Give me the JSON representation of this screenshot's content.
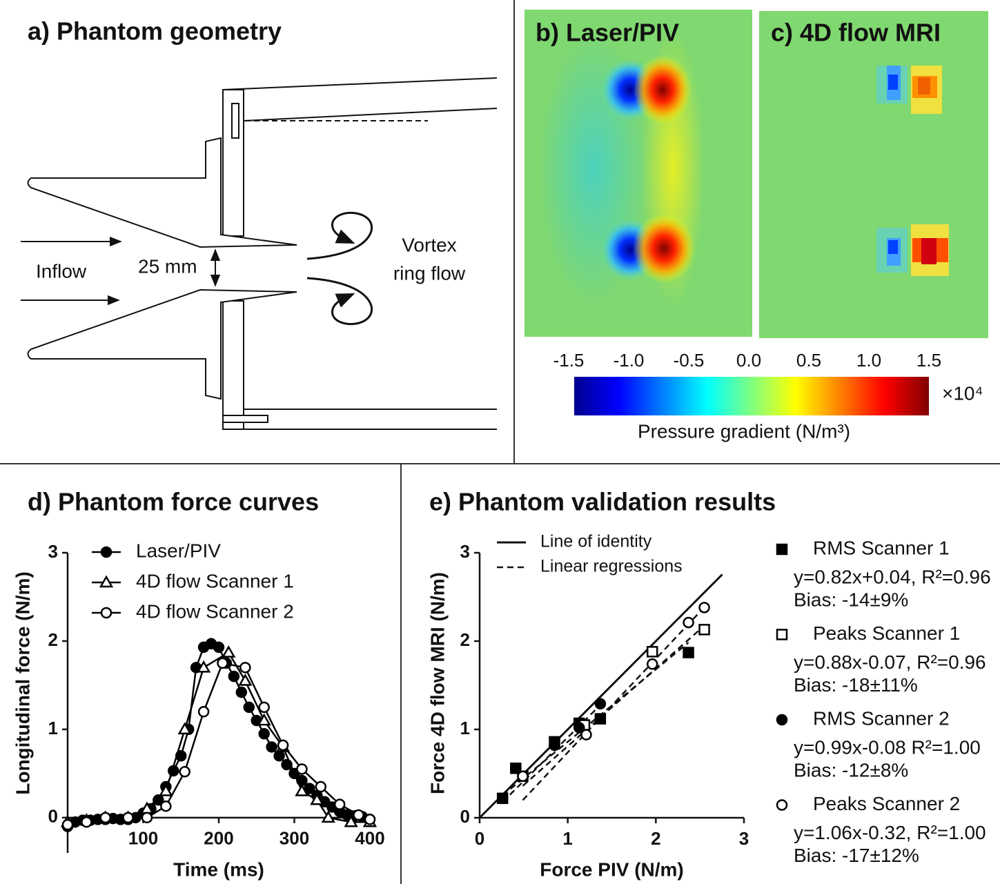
{
  "panel_a": {
    "title": "a) Phantom geometry",
    "inflow": "Inflow",
    "dimension": "25 mm",
    "vortex": [
      "Vortex",
      "ring flow"
    ]
  },
  "panel_b": {
    "title": "b) Laser/PIV"
  },
  "panel_c": {
    "title": "c) 4D flow MRI"
  },
  "colorbar": {
    "label": "Pressure gradient (N/m³)",
    "multiplier": "×10⁴",
    "clim": [
      -1.5,
      1.5
    ],
    "ticks": [
      -1.5,
      {
        "value": -1.0,
        "label": "-1.0"
      },
      -0.5,
      {
        "value": 0.0,
        "label": "0.0"
      },
      0.5,
      {
        "value": 1.0,
        "label": "1.0"
      },
      1.5
    ]
  },
  "chart_data": [
    {
      "type": "line",
      "title": "d) Phantom force curves",
      "x_label": "Time (ms)",
      "y_label": "Longitudinal force (N/m)",
      "xlim": [
        0,
        400
      ],
      "xticks": [
        100,
        200,
        300,
        400
      ],
      "ylim": [
        -0.4,
        3
      ],
      "yticks": [
        0,
        1,
        2,
        3
      ],
      "series": [
        {
          "name": "Laser/PIV",
          "marker": "filled-circle",
          "color": "#000000",
          "x": [
            0,
            10,
            20,
            30,
            40,
            50,
            60,
            70,
            80,
            90,
            100,
            110,
            120,
            130,
            140,
            150,
            160,
            170,
            180,
            190,
            200,
            210,
            220,
            230,
            240,
            250,
            260,
            270,
            280,
            290,
            300,
            310,
            320,
            330,
            340,
            350,
            360,
            370,
            380,
            390,
            400
          ],
          "values": [
            -0.1,
            -0.05,
            -0.03,
            -0.03,
            -0.02,
            -0.02,
            -0.01,
            -0.02,
            -0.02,
            0.0,
            0.05,
            0.1,
            0.2,
            0.35,
            0.53,
            0.7,
            1.0,
            1.7,
            1.93,
            1.97,
            1.93,
            1.75,
            1.6,
            1.42,
            1.25,
            1.1,
            0.95,
            0.8,
            0.7,
            0.6,
            0.5,
            0.42,
            0.33,
            0.25,
            0.18,
            0.12,
            0.07,
            0.03,
            0.02,
            0.01,
            -0.02
          ]
        },
        {
          "name": "4D flow Scanner 1",
          "marker": "open-triangle",
          "color": "#000000",
          "x": [
            0,
            25,
            50,
            80,
            105,
            130,
            155,
            180,
            213,
            235,
            260,
            285,
            310,
            330,
            345,
            375,
            400
          ],
          "values": [
            -0.05,
            -0.03,
            0.0,
            0.0,
            0.1,
            0.3,
            1.0,
            1.7,
            1.87,
            1.55,
            1.1,
            0.8,
            0.3,
            0.2,
            0.0,
            -0.05,
            -0.05
          ]
        },
        {
          "name": "4D flow Scanner 2",
          "marker": "open-circle",
          "color": "#000000",
          "x": [
            0,
            25,
            50,
            80,
            105,
            130,
            155,
            180,
            205,
            235,
            260,
            285,
            310,
            335,
            360,
            385,
            400
          ],
          "values": [
            -0.08,
            -0.05,
            0.0,
            0.0,
            0.0,
            0.13,
            0.52,
            1.2,
            1.75,
            1.7,
            1.25,
            0.82,
            0.55,
            0.35,
            0.15,
            0.03,
            -0.02
          ]
        }
      ]
    },
    {
      "type": "scatter",
      "title": "e) Phantom validation results",
      "x_label": "Force PIV (N/m)",
      "y_label": "Force 4D flow MRI (N/m)",
      "xlim": [
        0,
        3
      ],
      "xticks": [
        0,
        1,
        2,
        3
      ],
      "ylim": [
        0,
        3
      ],
      "yticks": [
        0,
        1,
        2,
        3
      ],
      "identity_label": "Line of identity",
      "regression_label": "Linear regressions",
      "series": [
        {
          "name": "RMS Scanner 1",
          "marker": "filled-square",
          "color": "#000000",
          "x": [
            0.26,
            0.41,
            0.85,
            1.13,
            1.37,
            2.37
          ],
          "values": [
            0.22,
            0.56,
            0.86,
            1.07,
            1.12,
            1.87
          ],
          "fit": {
            "slope": 0.82,
            "intercept": 0.04,
            "label": "y=0.82x+0.04, R²=0.96"
          },
          "bias": "Bias: -14±9%"
        },
        {
          "name": "Peaks Scanner 1",
          "marker": "open-square",
          "color": "#000000",
          "x": [
            0.49,
            1.19,
            1.96,
            2.55
          ],
          "values": [
            0.47,
            1.05,
            1.88,
            2.13
          ],
          "fit": {
            "slope": 0.88,
            "intercept": -0.07,
            "label": "y=0.88x-0.07, R²=0.96"
          },
          "bias": "Bias: -18±11%"
        },
        {
          "name": "RMS Scanner 2",
          "marker": "filled-circle",
          "color": "#000000",
          "x": [
            0.26,
            0.41,
            0.85,
            1.13,
            1.37
          ],
          "values": [
            0.22,
            0.56,
            0.82,
            1.02,
            1.29
          ],
          "fit": {
            "slope": 0.99,
            "intercept": -0.08,
            "label": "y=0.99x-0.08 R²=1.00"
          },
          "bias": "Bias: -12±8%"
        },
        {
          "name": "Peaks Scanner 2",
          "marker": "open-circle",
          "color": "#000000",
          "x": [
            0.49,
            1.21,
            1.96,
            2.37,
            2.55
          ],
          "values": [
            0.47,
            0.94,
            1.74,
            2.21,
            2.38
          ],
          "fit": {
            "slope": 1.06,
            "intercept": -0.32,
            "label": "y=1.06x-0.32, R²=1.00"
          },
          "bias": "Bias: -17±12%"
        }
      ]
    }
  ]
}
